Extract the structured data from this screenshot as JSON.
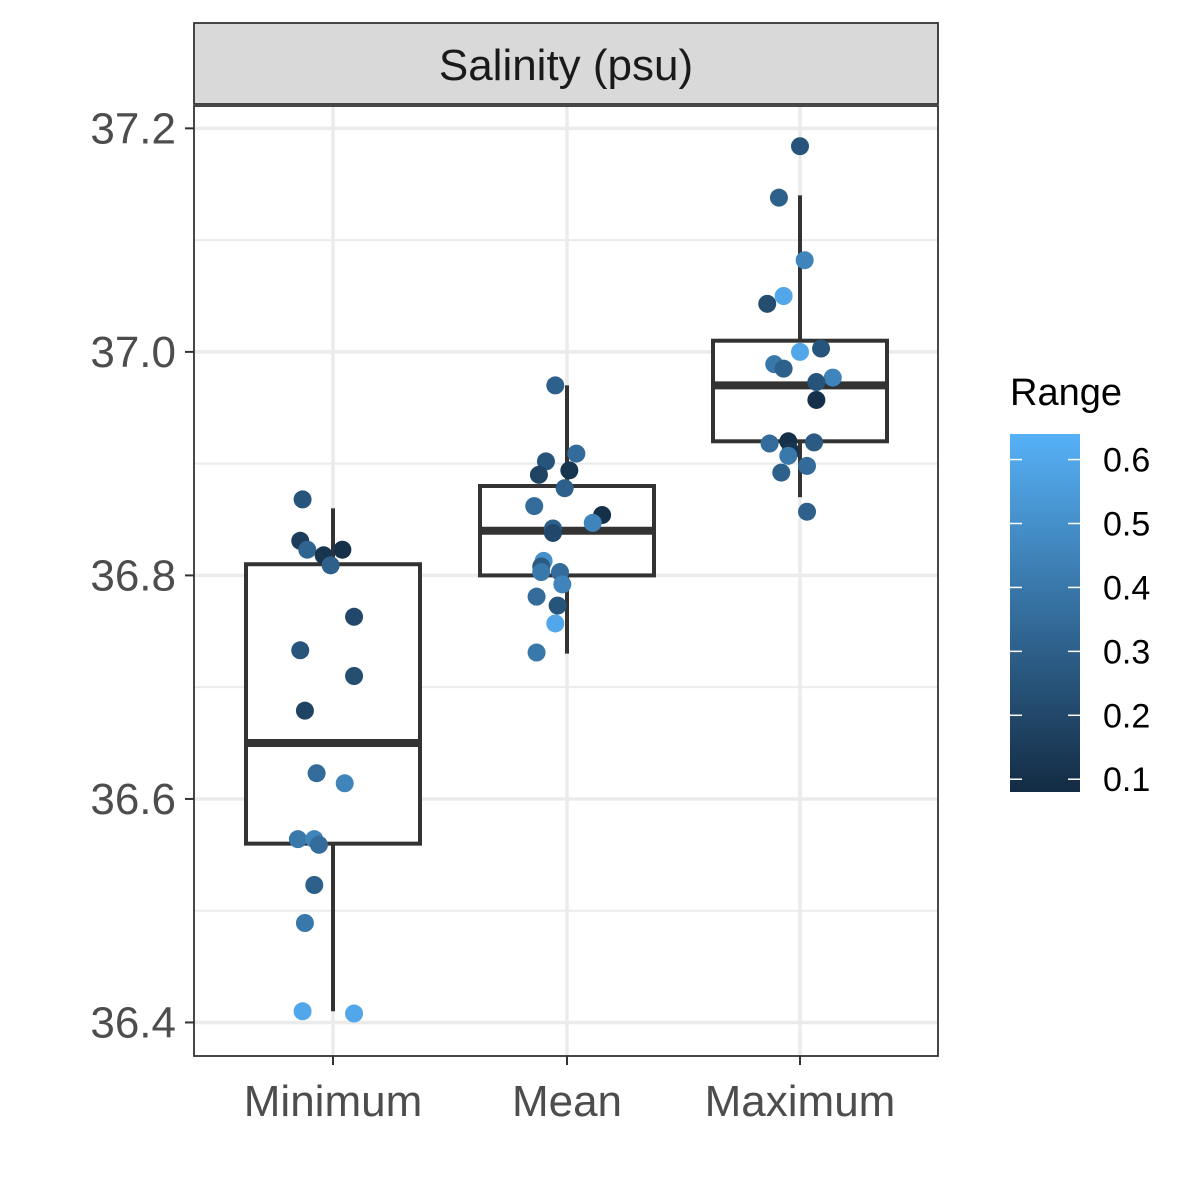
{
  "chart_data": {
    "type": "box",
    "facet_title": "Salinity (psu)",
    "categories": [
      "Minimum",
      "Mean",
      "Maximum"
    ],
    "ylim": [
      36.37,
      37.22
    ],
    "y_ticks": [
      36.4,
      36.6,
      36.8,
      37.0,
      37.2
    ],
    "y_tick_labels": [
      "36.4",
      "36.6",
      "36.8",
      "37.0",
      "37.2"
    ],
    "grid": true,
    "boxes": [
      {
        "category": "Minimum",
        "whisker_low": 36.41,
        "q1": 36.56,
        "median": 36.65,
        "q3": 36.81,
        "whisker_high": 36.86
      },
      {
        "category": "Mean",
        "whisker_low": 36.73,
        "q1": 36.8,
        "median": 36.84,
        "q3": 36.88,
        "whisker_high": 36.97
      },
      {
        "category": "Maximum",
        "whisker_low": 36.87,
        "q1": 36.92,
        "median": 36.97,
        "q3": 37.01,
        "whisker_high": 37.14
      }
    ],
    "points": [
      {
        "category": "Minimum",
        "jitter": -0.13,
        "y": 36.868,
        "range": 0.25
      },
      {
        "category": "Minimum",
        "jitter": -0.14,
        "y": 36.831,
        "range": 0.15
      },
      {
        "category": "Minimum",
        "jitter": -0.11,
        "y": 36.823,
        "range": 0.32
      },
      {
        "category": "Minimum",
        "jitter": -0.04,
        "y": 36.818,
        "range": 0.12
      },
      {
        "category": "Minimum",
        "jitter": 0.04,
        "y": 36.823,
        "range": 0.1
      },
      {
        "category": "Minimum",
        "jitter": -0.01,
        "y": 36.809,
        "range": 0.3
      },
      {
        "category": "Minimum",
        "jitter": 0.09,
        "y": 36.763,
        "range": 0.2
      },
      {
        "category": "Minimum",
        "jitter": -0.14,
        "y": 36.733,
        "range": 0.25
      },
      {
        "category": "Minimum",
        "jitter": 0.09,
        "y": 36.71,
        "range": 0.22
      },
      {
        "category": "Minimum",
        "jitter": -0.12,
        "y": 36.679,
        "range": 0.18
      },
      {
        "category": "Minimum",
        "jitter": -0.07,
        "y": 36.623,
        "range": 0.35
      },
      {
        "category": "Minimum",
        "jitter": 0.05,
        "y": 36.614,
        "range": 0.45
      },
      {
        "category": "Minimum",
        "jitter": -0.15,
        "y": 36.564,
        "range": 0.4
      },
      {
        "category": "Minimum",
        "jitter": -0.08,
        "y": 36.564,
        "range": 0.45
      },
      {
        "category": "Minimum",
        "jitter": -0.06,
        "y": 36.559,
        "range": 0.35
      },
      {
        "category": "Minimum",
        "jitter": -0.08,
        "y": 36.523,
        "range": 0.3
      },
      {
        "category": "Minimum",
        "jitter": -0.12,
        "y": 36.489,
        "range": 0.4
      },
      {
        "category": "Minimum",
        "jitter": -0.13,
        "y": 36.41,
        "range": 0.6
      },
      {
        "category": "Minimum",
        "jitter": 0.09,
        "y": 36.408,
        "range": 0.6
      },
      {
        "category": "Mean",
        "jitter": -0.05,
        "y": 36.97,
        "range": 0.3
      },
      {
        "category": "Mean",
        "jitter": 0.04,
        "y": 36.909,
        "range": 0.35
      },
      {
        "category": "Mean",
        "jitter": -0.09,
        "y": 36.902,
        "range": 0.25
      },
      {
        "category": "Mean",
        "jitter": 0.01,
        "y": 36.894,
        "range": 0.12
      },
      {
        "category": "Mean",
        "jitter": -0.12,
        "y": 36.89,
        "range": 0.18
      },
      {
        "category": "Mean",
        "jitter": -0.01,
        "y": 36.878,
        "range": 0.3
      },
      {
        "category": "Mean",
        "jitter": -0.14,
        "y": 36.862,
        "range": 0.35
      },
      {
        "category": "Mean",
        "jitter": 0.15,
        "y": 36.854,
        "range": 0.1
      },
      {
        "category": "Mean",
        "jitter": 0.11,
        "y": 36.847,
        "range": 0.45
      },
      {
        "category": "Mean",
        "jitter": -0.06,
        "y": 36.842,
        "range": 0.3
      },
      {
        "category": "Mean",
        "jitter": -0.06,
        "y": 36.838,
        "range": 0.2
      },
      {
        "category": "Mean",
        "jitter": -0.1,
        "y": 36.813,
        "range": 0.5
      },
      {
        "category": "Mean",
        "jitter": -0.11,
        "y": 36.808,
        "range": 0.28
      },
      {
        "category": "Mean",
        "jitter": -0.03,
        "y": 36.803,
        "range": 0.35
      },
      {
        "category": "Mean",
        "jitter": -0.11,
        "y": 36.803,
        "range": 0.4
      },
      {
        "category": "Mean",
        "jitter": -0.02,
        "y": 36.792,
        "range": 0.45
      },
      {
        "category": "Mean",
        "jitter": -0.13,
        "y": 36.781,
        "range": 0.35
      },
      {
        "category": "Mean",
        "jitter": -0.04,
        "y": 36.773,
        "range": 0.25
      },
      {
        "category": "Mean",
        "jitter": -0.05,
        "y": 36.757,
        "range": 0.6
      },
      {
        "category": "Mean",
        "jitter": -0.13,
        "y": 36.731,
        "range": 0.4
      },
      {
        "category": "Maximum",
        "jitter": 0.0,
        "y": 37.184,
        "range": 0.25
      },
      {
        "category": "Maximum",
        "jitter": -0.09,
        "y": 37.138,
        "range": 0.3
      },
      {
        "category": "Maximum",
        "jitter": 0.02,
        "y": 37.082,
        "range": 0.45
      },
      {
        "category": "Maximum",
        "jitter": -0.07,
        "y": 37.05,
        "range": 0.6
      },
      {
        "category": "Maximum",
        "jitter": -0.14,
        "y": 37.043,
        "range": 0.22
      },
      {
        "category": "Maximum",
        "jitter": 0.09,
        "y": 37.003,
        "range": 0.25
      },
      {
        "category": "Maximum",
        "jitter": 0.0,
        "y": 37.0,
        "range": 0.6
      },
      {
        "category": "Maximum",
        "jitter": -0.11,
        "y": 36.989,
        "range": 0.4
      },
      {
        "category": "Maximum",
        "jitter": -0.07,
        "y": 36.985,
        "range": 0.3
      },
      {
        "category": "Maximum",
        "jitter": 0.14,
        "y": 36.977,
        "range": 0.45
      },
      {
        "category": "Maximum",
        "jitter": 0.07,
        "y": 36.973,
        "range": 0.25
      },
      {
        "category": "Maximum",
        "jitter": 0.07,
        "y": 36.957,
        "range": 0.1
      },
      {
        "category": "Maximum",
        "jitter": -0.13,
        "y": 36.918,
        "range": 0.35
      },
      {
        "category": "Maximum",
        "jitter": -0.05,
        "y": 36.92,
        "range": 0.1
      },
      {
        "category": "Maximum",
        "jitter": 0.06,
        "y": 36.919,
        "range": 0.28
      },
      {
        "category": "Maximum",
        "jitter": -0.04,
        "y": 36.911,
        "range": 0.12
      },
      {
        "category": "Maximum",
        "jitter": -0.05,
        "y": 36.907,
        "range": 0.4
      },
      {
        "category": "Maximum",
        "jitter": 0.03,
        "y": 36.898,
        "range": 0.35
      },
      {
        "category": "Maximum",
        "jitter": -0.08,
        "y": 36.892,
        "range": 0.3
      },
      {
        "category": "Maximum",
        "jitter": 0.03,
        "y": 36.857,
        "range": 0.3
      }
    ],
    "legend": {
      "title": "Range",
      "position": "right",
      "type": "colorbar",
      "min": 0.08,
      "max": 0.64,
      "ticks": [
        0.1,
        0.2,
        0.3,
        0.4,
        0.5,
        0.6
      ],
      "tick_labels": [
        "0.1",
        "0.2",
        "0.3",
        "0.4",
        "0.5",
        "0.6"
      ],
      "color_low": "#132B43",
      "color_high": "#56B1F7"
    }
  }
}
